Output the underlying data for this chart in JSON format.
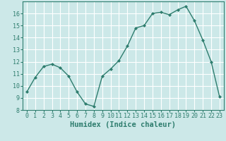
{
  "x": [
    0,
    1,
    2,
    3,
    4,
    5,
    6,
    7,
    8,
    9,
    10,
    11,
    12,
    13,
    14,
    15,
    16,
    17,
    18,
    19,
    20,
    21,
    22,
    23
  ],
  "y": [
    9.5,
    10.7,
    11.6,
    11.8,
    11.5,
    10.8,
    9.5,
    8.5,
    8.3,
    10.8,
    11.4,
    12.1,
    13.3,
    14.8,
    15.0,
    16.0,
    16.1,
    15.9,
    16.3,
    16.6,
    15.4,
    13.8,
    12.0,
    9.1
  ],
  "line_color": "#2e7d6e",
  "marker": "D",
  "marker_size": 2.0,
  "bg_color": "#cce8e8",
  "grid_color": "#ffffff",
  "xlabel": "Humidex (Indice chaleur)",
  "xlim": [
    -0.5,
    23.5
  ],
  "ylim": [
    8,
    17
  ],
  "yticks": [
    8,
    9,
    10,
    11,
    12,
    13,
    14,
    15,
    16
  ],
  "xticks": [
    0,
    1,
    2,
    3,
    4,
    5,
    6,
    7,
    8,
    9,
    10,
    11,
    12,
    13,
    14,
    15,
    16,
    17,
    18,
    19,
    20,
    21,
    22,
    23
  ],
  "tick_label_size": 6.0,
  "xlabel_size": 7.5,
  "line_width": 1.0,
  "axis_color": "#2e7d6e"
}
